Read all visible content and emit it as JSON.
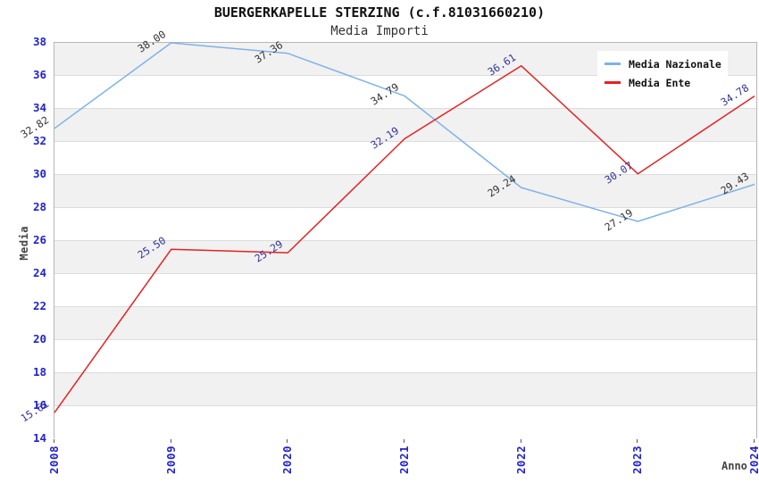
{
  "chart_data": {
    "type": "line",
    "title": "BUERGERKAPELLE STERZING (c.f.81031660210)",
    "subtitle": "Media Importi",
    "xlabel": "Anno",
    "ylabel": "Media",
    "categories": [
      "2008",
      "2009",
      "2020",
      "2021",
      "2022",
      "2023",
      "2024"
    ],
    "ylim": [
      14,
      38
    ],
    "ytick_step": 2,
    "grid": true,
    "legend_position": "top-right",
    "value_label_decimals": 2,
    "series": [
      {
        "name": "Media Nazionale",
        "color": "#7FB2E8",
        "label_color": "#333333",
        "values": [
          32.82,
          38.0,
          37.36,
          34.79,
          29.24,
          27.19,
          29.43
        ]
      },
      {
        "name": "Media Ente",
        "color": "#E62222",
        "label_color": "#333399",
        "values": [
          15.61,
          25.5,
          25.29,
          32.19,
          36.61,
          30.07,
          34.78
        ]
      }
    ],
    "colors": {
      "band_gray": "#f1f1f1",
      "band_white": "#ffffff",
      "grid": "#dcdcdc",
      "axis_border": "#b6b6b6",
      "tick_label": "#2222cc",
      "axis_title": "#444444",
      "title": "#111111",
      "subtitle": "#333333",
      "legend_bg": "#ffffff"
    }
  }
}
